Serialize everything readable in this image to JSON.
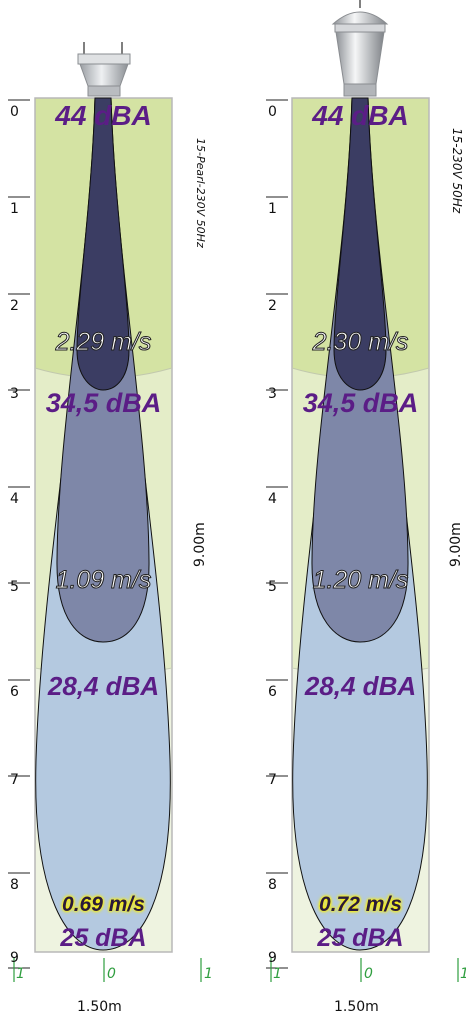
{
  "y_ticks": [
    "0",
    "1",
    "2",
    "3",
    "4",
    "5",
    "6",
    "7",
    "8",
    "9"
  ],
  "x_ticks": [
    "1",
    "0",
    "1"
  ],
  "panels": [
    {
      "model": "15-Pearl-230V 50Hz",
      "height": "9.00m",
      "width": "1.50m",
      "db_top": "44 dBA",
      "db_mid": "34,5 dBA",
      "db_low": "28,4 dBA",
      "db_bottom": "25 dBA",
      "speed_high": "2.29 m/s",
      "speed_mid": "1.09 m/s",
      "speed_low": "0.69 m/s"
    },
    {
      "model": "15-230V 50Hz",
      "height": "9.00m",
      "width": "1.50m",
      "db_top": "44 dBA",
      "db_mid": "34,5 dBA",
      "db_low": "28,4 dBA",
      "db_bottom": "25 dBA",
      "speed_high": "2.30 m/s",
      "speed_mid": "1.20 m/s",
      "speed_low": "0.72 m/s"
    }
  ],
  "colors": {
    "zone_top": "#d4e3a3",
    "zone_mid": "#e4edc8",
    "zone_bottom": "#eef3e0",
    "plume_outer": "#b4c9e0",
    "plume_mid": "#7e87a8",
    "plume_inner": "#3b3d63",
    "db_text": "#5b1d86",
    "tick_green": "#2f9e3f"
  }
}
